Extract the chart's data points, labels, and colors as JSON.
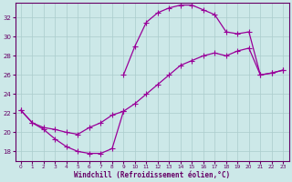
{
  "xlabel": "Windchill (Refroidissement éolien,°C)",
  "xlim": [
    -0.5,
    23.5
  ],
  "ylim": [
    17.0,
    33.5
  ],
  "yticks": [
    18,
    20,
    22,
    24,
    26,
    28,
    30,
    32
  ],
  "xticks": [
    0,
    1,
    2,
    3,
    4,
    5,
    6,
    7,
    8,
    9,
    10,
    11,
    12,
    13,
    14,
    15,
    16,
    17,
    18,
    19,
    20,
    21,
    22,
    23
  ],
  "bg_color": "#cce8e8",
  "grid_color": "#aacccc",
  "line_color": "#990099",
  "curve1_x": [
    9,
    10,
    11,
    12,
    13,
    14,
    15,
    16,
    17,
    18,
    19,
    20,
    21,
    22,
    23
  ],
  "curve1_y": [
    26.0,
    29.0,
    31.5,
    32.5,
    33.0,
    33.3,
    33.3,
    32.8,
    32.3,
    30.5,
    30.3,
    30.5,
    26.0,
    26.2,
    26.5
  ],
  "curve2_x": [
    0,
    1,
    2,
    3,
    4,
    5,
    6,
    7,
    8,
    9,
    10,
    11,
    12,
    13,
    14,
    15,
    16,
    17,
    18,
    19,
    20,
    21,
    22,
    23
  ],
  "curve2_y": [
    22.3,
    21.0,
    20.5,
    20.3,
    20.0,
    19.8,
    20.5,
    21.0,
    21.8,
    22.2,
    23.0,
    24.0,
    25.0,
    26.0,
    27.0,
    27.5,
    28.0,
    28.3,
    28.0,
    28.5,
    28.8,
    26.0,
    26.2,
    26.5
  ],
  "curve3_x": [
    0,
    1,
    2,
    3,
    4,
    5,
    6,
    7,
    8,
    9
  ],
  "curve3_y": [
    22.3,
    21.0,
    20.3,
    19.3,
    18.5,
    18.0,
    17.8,
    17.8,
    18.3,
    22.2
  ]
}
